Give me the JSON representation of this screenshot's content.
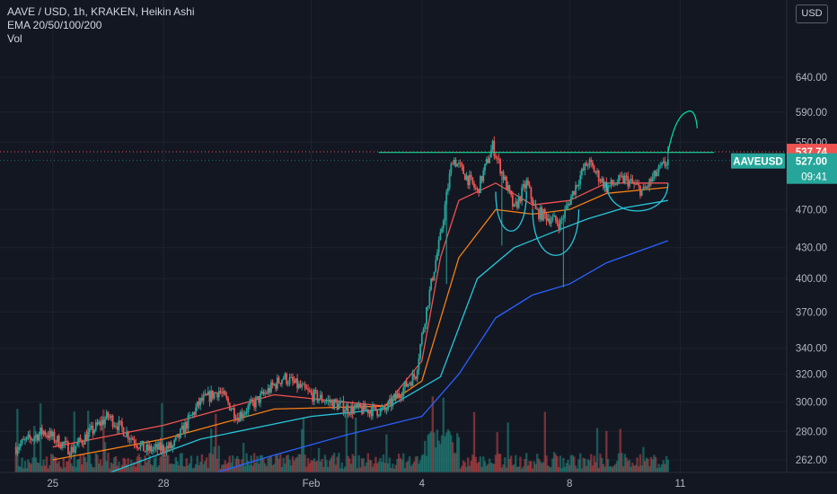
{
  "header": {
    "symbol_line": "AAVE / USD, 1h, KRAKEN, Heikin Ashi",
    "indicator_line": "EMA 20/50/100/200",
    "volume_line": "Vol"
  },
  "currency_button": "USD",
  "colors": {
    "background": "#131722",
    "up": "#26a69a",
    "down": "#ef5350",
    "ema20": "#ef5350",
    "ema50": "#f57f17",
    "ema100": "#26c6da",
    "ema200": "#2962ff",
    "annotation": "#00e5a0",
    "axis_text": "#b2b5be"
  },
  "chart_data": {
    "type": "candlestick",
    "title": "AAVE / USD, 1h, KRAKEN, Heikin Ashi",
    "y_axis": {
      "scale": "log",
      "range": [
        245,
        735
      ],
      "ticks": [
        262,
        280,
        300,
        320,
        340,
        370,
        400,
        430,
        470,
        550,
        590,
        640
      ]
    },
    "x_axis": {
      "labels": [
        "25",
        "28",
        "Feb",
        "4",
        "8",
        "11"
      ],
      "range_days": [
        "2021-01-24",
        "2021-02-12"
      ]
    },
    "price_labels": {
      "last": {
        "text": "537.74",
        "value": 537.74,
        "color": "#ef5350"
      },
      "current": {
        "text": "527.00",
        "value": 527.0,
        "color": "#26a69a"
      },
      "countdown": {
        "text": "09:41",
        "color": "#26a69a"
      },
      "symbol_tag": "AAVEUSD"
    },
    "price_path_anchors": [
      [
        "2021-01-24T00",
        270
      ],
      [
        "2021-01-24T18",
        280
      ],
      [
        "2021-01-25T12",
        268
      ],
      [
        "2021-01-26T12",
        290
      ],
      [
        "2021-01-27T12",
        268
      ],
      [
        "2021-01-28T06",
        270
      ],
      [
        "2021-01-29T00",
        300
      ],
      [
        "2021-01-29T12",
        308
      ],
      [
        "2021-01-30T00",
        290
      ],
      [
        "2021-01-30T12",
        300
      ],
      [
        "2021-01-31T06",
        318
      ],
      [
        "2021-02-01T00",
        305
      ],
      [
        "2021-02-02T00",
        295
      ],
      [
        "2021-02-03T00",
        294
      ],
      [
        "2021-02-03T20",
        320
      ],
      [
        "2021-02-04T12",
        440
      ],
      [
        "2021-02-04T20",
        530
      ],
      [
        "2021-02-05T12",
        490
      ],
      [
        "2021-02-05T22",
        545
      ],
      [
        "2021-02-06T12",
        470
      ],
      [
        "2021-02-06T20",
        500
      ],
      [
        "2021-02-07T02",
        468
      ],
      [
        "2021-02-07T18",
        455
      ],
      [
        "2021-02-08T06",
        505
      ],
      [
        "2021-02-08T12",
        525
      ],
      [
        "2021-02-09T00",
        495
      ],
      [
        "2021-02-09T12",
        505
      ],
      [
        "2021-02-10T00",
        490
      ],
      [
        "2021-02-10T08",
        510
      ],
      [
        "2021-02-10T16",
        527
      ]
    ],
    "emas": [
      {
        "name": "EMA 20",
        "color": "#ef5350",
        "points": [
          [
            "2021-01-25T00",
            270
          ],
          [
            "2021-01-28T00",
            284
          ],
          [
            "2021-01-31T00",
            305
          ],
          [
            "2021-02-03T00",
            297
          ],
          [
            "2021-02-04T00",
            330
          ],
          [
            "2021-02-04T12",
            420
          ],
          [
            "2021-02-05T00",
            480
          ],
          [
            "2021-02-06T00",
            500
          ],
          [
            "2021-02-07T00",
            475
          ],
          [
            "2021-02-08T00",
            480
          ],
          [
            "2021-02-09T00",
            500
          ],
          [
            "2021-02-10T16",
            500
          ]
        ]
      },
      {
        "name": "EMA 50",
        "color": "#f57f17",
        "points": [
          [
            "2021-01-25T00",
            262
          ],
          [
            "2021-01-28T00",
            275
          ],
          [
            "2021-01-31T00",
            295
          ],
          [
            "2021-02-03T00",
            297
          ],
          [
            "2021-02-04T00",
            315
          ],
          [
            "2021-02-05T00",
            420
          ],
          [
            "2021-02-06T00",
            470
          ],
          [
            "2021-02-07T00",
            465
          ],
          [
            "2021-02-08T00",
            470
          ],
          [
            "2021-02-09T00",
            488
          ],
          [
            "2021-02-10T16",
            495
          ]
        ]
      },
      {
        "name": "EMA 100",
        "color": "#26c6da",
        "points": [
          [
            "2021-01-26T00",
            250
          ],
          [
            "2021-01-29T00",
            275
          ],
          [
            "2021-02-01T00",
            290
          ],
          [
            "2021-02-03T00",
            295
          ],
          [
            "2021-02-04T12",
            318
          ],
          [
            "2021-02-05T12",
            400
          ],
          [
            "2021-02-06T12",
            430
          ],
          [
            "2021-02-07T12",
            445
          ],
          [
            "2021-02-08T12",
            460
          ],
          [
            "2021-02-09T12",
            472
          ],
          [
            "2021-02-10T16",
            480
          ]
        ]
      },
      {
        "name": "EMA 200",
        "color": "#2962ff",
        "points": [
          [
            "2021-01-28T00",
            245
          ],
          [
            "2021-01-31T00",
            265
          ],
          [
            "2021-02-02T00",
            278
          ],
          [
            "2021-02-04T00",
            290
          ],
          [
            "2021-02-05T00",
            320
          ],
          [
            "2021-02-06T00",
            365
          ],
          [
            "2021-02-07T00",
            385
          ],
          [
            "2021-02-08T00",
            395
          ],
          [
            "2021-02-09T00",
            415
          ],
          [
            "2021-02-10T16",
            437
          ]
        ]
      }
    ],
    "annotations": {
      "resistance_line_value": 537,
      "resistance_from": "2021-02-02T20",
      "resistance_to": "2021-02-11T22",
      "breakout_arrow_target_value": 590
    }
  }
}
